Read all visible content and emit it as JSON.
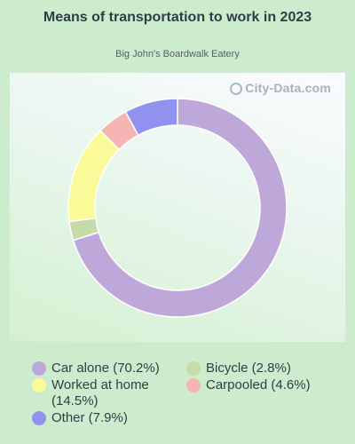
{
  "title": "Means of transportation to work in 2023",
  "subtitle": "Big John's Boardwalk Eatery",
  "watermark": "City-Data.com",
  "chart_data": {
    "type": "pie",
    "style": "donut",
    "categories": [
      "Car alone",
      "Bicycle",
      "Worked at home",
      "Carpooled",
      "Other"
    ],
    "values": [
      70.2,
      2.8,
      14.5,
      4.6,
      7.9
    ],
    "unit": "%",
    "colors": [
      "#bea8da",
      "#c6dba8",
      "#fafa98",
      "#f5b5b5",
      "#9191ef"
    ],
    "legend_labels": [
      "Car alone (70.2%)",
      "Bicycle (2.8%)",
      "Worked at home (14.5%)",
      "Carpooled (4.6%)",
      "Other (7.9%)"
    ],
    "legend_position": "bottom"
  }
}
